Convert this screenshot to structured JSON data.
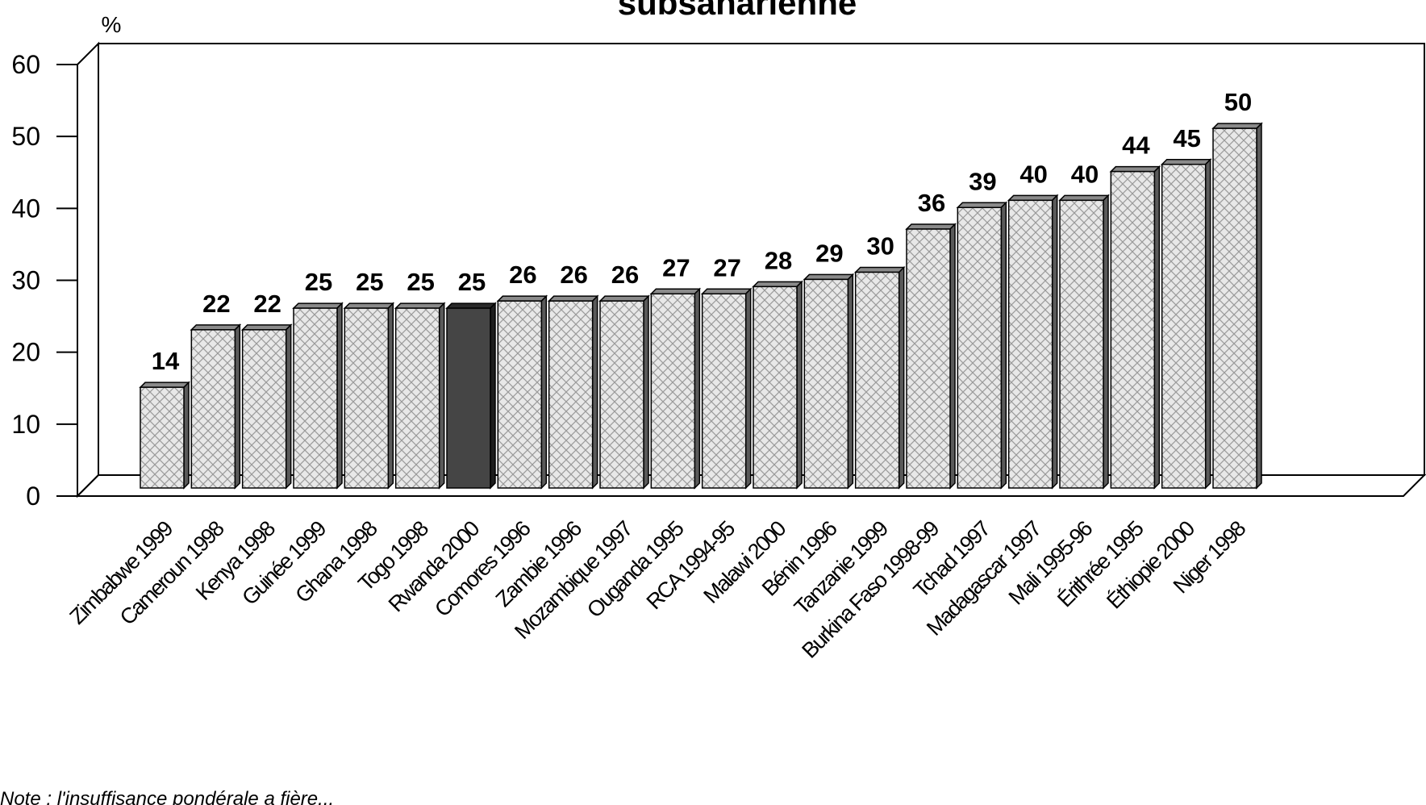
{
  "chart_data": {
    "type": "bar",
    "title": "subsaharienne",
    "unit": "%",
    "categories": [
      "Zimbabwe 1999",
      "Cameroun 1998",
      "Kenya 1998",
      "Guinée 1999",
      "Ghana 1998",
      "Togo 1998",
      "Rwanda 2000",
      "Comores 1996",
      "Zambie 1996",
      "Mozambique 1997",
      "Ouganda 1995",
      "RCA 1994-95",
      "Malawi 2000",
      "Bénin 1996",
      "Tanzanie 1999",
      "Burkina Faso 1998-99",
      "Tchad 1997",
      "Madagascar 1997",
      "Mali 1995-96",
      "Érithrée 1995",
      "Éthiopie 2000",
      "Niger 1998"
    ],
    "values": [
      14,
      22,
      22,
      25,
      25,
      25,
      25,
      26,
      26,
      26,
      27,
      27,
      28,
      29,
      30,
      36,
      39,
      40,
      40,
      44,
      45,
      50
    ],
    "highlight_category": "Rwanda 2000",
    "ylim": [
      0,
      60
    ],
    "yticks": [
      0,
      10,
      20,
      30,
      40,
      50,
      60
    ],
    "grid": false,
    "style": "3d",
    "bar_fill": "#e6e6e6",
    "bar_hatch_color": "#909090",
    "highlight_fill": "#454545",
    "note": "Note : l'insuffisance pondérale a fière..."
  }
}
